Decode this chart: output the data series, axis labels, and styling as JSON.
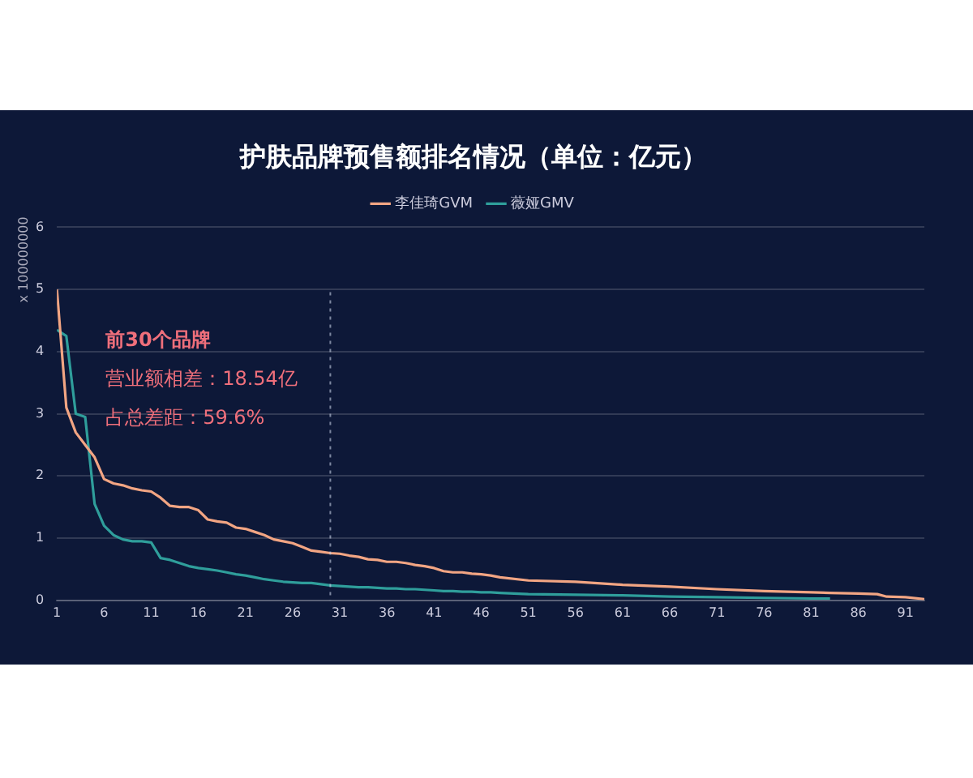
{
  "chart_data": {
    "type": "line",
    "title": "护肤品牌预售额排名情况（单位：亿元）",
    "ylabel": "x 100000000",
    "x": [
      1,
      2,
      3,
      4,
      5,
      6,
      7,
      8,
      9,
      10,
      11,
      12,
      13,
      14,
      15,
      16,
      17,
      18,
      19,
      20,
      21,
      22,
      23,
      24,
      25,
      26,
      27,
      28,
      29,
      30,
      31,
      32,
      33,
      34,
      35,
      36,
      37,
      38,
      39,
      40,
      41,
      42,
      43,
      44,
      45,
      46,
      47,
      48,
      51,
      56,
      61,
      66,
      71,
      76,
      81,
      83,
      86,
      88,
      89,
      91,
      93
    ],
    "series": [
      {
        "name": "李佳琦GVM",
        "color": "#f2a583",
        "values": [
          5.0,
          3.1,
          2.7,
          2.5,
          2.3,
          1.95,
          1.88,
          1.85,
          1.8,
          1.77,
          1.75,
          1.65,
          1.52,
          1.5,
          1.5,
          1.45,
          1.3,
          1.27,
          1.25,
          1.17,
          1.15,
          1.1,
          1.05,
          0.98,
          0.95,
          0.92,
          0.86,
          0.8,
          0.78,
          0.76,
          0.75,
          0.72,
          0.7,
          0.66,
          0.65,
          0.62,
          0.62,
          0.6,
          0.57,
          0.55,
          0.52,
          0.47,
          0.45,
          0.45,
          0.43,
          0.42,
          0.4,
          0.37,
          0.32,
          0.3,
          0.25,
          0.22,
          0.18,
          0.15,
          0.13,
          0.12,
          0.11,
          0.1,
          0.06,
          0.05,
          0.02
        ]
      },
      {
        "name": "薇娅GMV",
        "color": "#2f9e9b",
        "values": [
          4.35,
          4.25,
          3.0,
          2.95,
          1.55,
          1.2,
          1.05,
          0.98,
          0.95,
          0.95,
          0.93,
          0.68,
          0.65,
          0.6,
          0.55,
          0.52,
          0.5,
          0.48,
          0.45,
          0.42,
          0.4,
          0.37,
          0.34,
          0.32,
          0.3,
          0.29,
          0.28,
          0.28,
          0.26,
          0.24,
          0.23,
          0.22,
          0.21,
          0.21,
          0.2,
          0.19,
          0.19,
          0.18,
          0.18,
          0.17,
          0.16,
          0.15,
          0.15,
          0.14,
          0.14,
          0.13,
          0.13,
          0.12,
          0.1,
          0.09,
          0.08,
          0.06,
          0.05,
          0.04,
          0.03,
          0.03,
          null,
          null,
          null,
          null,
          null
        ]
      }
    ],
    "xlim": [
      1,
      93
    ],
    "xticks": [
      1,
      6,
      11,
      16,
      21,
      26,
      31,
      36,
      41,
      46,
      51,
      56,
      61,
      66,
      71,
      76,
      81,
      86,
      91
    ],
    "ylim": [
      0,
      6
    ],
    "yticks": [
      0,
      1,
      2,
      3,
      4,
      5,
      6
    ],
    "grid": "y",
    "legend": "top",
    "marker": "none",
    "line_style": "solid",
    "ref_lines": [
      {
        "axis": "x",
        "value": 30,
        "line_style": "dotted"
      }
    ],
    "annotations": [
      "前30个品牌",
      "营业额相差：18.54亿",
      "占总差距：59.6%"
    ]
  }
}
